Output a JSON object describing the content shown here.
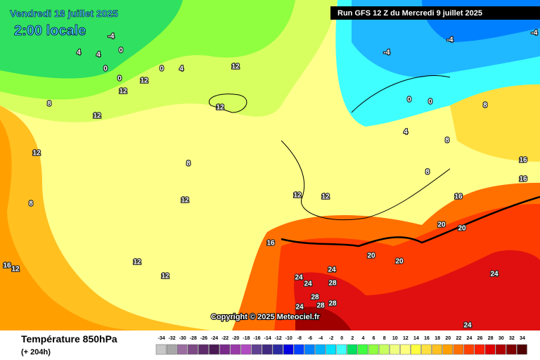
{
  "header": {
    "date": "Vendredi 18 juillet 2025",
    "time": "2:00 locale",
    "run": "Run GFS 12 Z du Mercredi 9 juillet 2025"
  },
  "footer": {
    "title": "Température 850hPa",
    "lead": "(+ 204h)",
    "copyright": "Copyright © 2025 Meteociel.fr"
  },
  "scale": {
    "labels": [
      -34,
      -32,
      -30,
      -28,
      -26,
      -24,
      -22,
      -20,
      -18,
      -16,
      -14,
      -12,
      -10,
      -8,
      -6,
      -4,
      -2,
      0,
      2,
      4,
      6,
      8,
      10,
      12,
      14,
      16,
      18,
      20,
      22,
      24,
      26,
      28,
      30,
      32,
      34
    ],
    "colors": [
      "#c8c8c8",
      "#a8a8a8",
      "#9a6fa0",
      "#7d4a85",
      "#5e2a6a",
      "#4a1a55",
      "#7a2a8a",
      "#9a3aa8",
      "#b04ac0",
      "#604090",
      "#402a80",
      "#2a2aa0",
      "#0000e0",
      "#0040ff",
      "#0080ff",
      "#00b0ff",
      "#00e0ff",
      "#40ffff",
      "#00e060",
      "#40ff40",
      "#90ff40",
      "#c8ff60",
      "#f0ff80",
      "#ffff80",
      "#ffff40",
      "#ffe040",
      "#ffc020",
      "#ffa000",
      "#ff7000",
      "#ff4000",
      "#ff2000",
      "#e00000",
      "#b00000",
      "#800000",
      "#500000"
    ]
  },
  "map_labels": [
    "-4",
    "0",
    "4",
    "4",
    "0",
    "0",
    "0",
    "4",
    "12",
    "12",
    "12",
    "8",
    "12",
    "12",
    "12",
    "8",
    "8",
    "12",
    "12",
    "-4",
    "-4",
    "-4",
    "0",
    "0",
    "4",
    "8",
    "8",
    "8",
    "16",
    "16",
    "12",
    "12",
    "16",
    "20",
    "20",
    "24",
    "24",
    "28",
    "24",
    "28",
    "28",
    "24",
    "28",
    "24",
    "16",
    "12",
    "12",
    "16",
    "20",
    "20",
    "24"
  ]
}
